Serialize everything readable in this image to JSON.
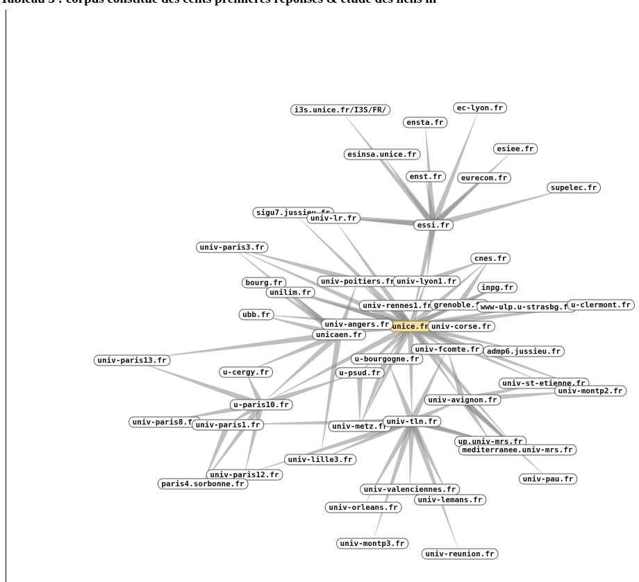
{
  "caption": "Tableau 3 : corpus constitué des cents premières réponses & étude des liens in",
  "colors": {
    "edge": "#8a8a8a",
    "hub_fill": "#f7e3a0",
    "node_fill": "#ffffff"
  },
  "nodes": [
    {
      "id": "unice",
      "label": "unice.fr",
      "hub": true
    },
    {
      "id": "i3s",
      "label": "i3s.unice.fr/I3S/FR/"
    },
    {
      "id": "eclyon",
      "label": "ec-lyon.fr"
    },
    {
      "id": "ensta",
      "label": "ensta.fr"
    },
    {
      "id": "esiee",
      "label": "esiee.fr"
    },
    {
      "id": "esinsa",
      "label": "esinsa.unice.fr"
    },
    {
      "id": "enst",
      "label": "enst.fr"
    },
    {
      "id": "eurecom",
      "label": "eurecom.fr"
    },
    {
      "id": "supelec",
      "label": "supelec.fr"
    },
    {
      "id": "sigu7",
      "label": "sigu7.jussieu.fr"
    },
    {
      "id": "univlr",
      "label": "univ-lr.fr"
    },
    {
      "id": "essi",
      "label": "essi.fr"
    },
    {
      "id": "paris3",
      "label": "univ-paris3.fr"
    },
    {
      "id": "cnes",
      "label": "cnes.fr"
    },
    {
      "id": "bourg",
      "label": "bourg.fr"
    },
    {
      "id": "poitiers",
      "label": "univ-poitiers.fr"
    },
    {
      "id": "lyon1",
      "label": "univ-lyon1.fr"
    },
    {
      "id": "inpg",
      "label": "inpg.fr"
    },
    {
      "id": "unilim",
      "label": "unilim.fr"
    },
    {
      "id": "rennes1",
      "label": "univ-rennes1.fr"
    },
    {
      "id": "grenoble",
      "label": "grenoble.fr"
    },
    {
      "id": "ulp",
      "label": "www-ulp.u-strasbg.fr"
    },
    {
      "id": "clermont",
      "label": "u-clermont.fr"
    },
    {
      "id": "ubb",
      "label": "ubb.fr"
    },
    {
      "id": "angers",
      "label": "univ-angers.fr"
    },
    {
      "id": "corse",
      "label": "univ-corse.fr"
    },
    {
      "id": "unicaen",
      "label": "unicaen.fr"
    },
    {
      "id": "fcomte",
      "label": "univ-fcomte.fr"
    },
    {
      "id": "admp6",
      "label": "admp6.jussieu.fr"
    },
    {
      "id": "ubourgogne",
      "label": "u-bourgogne.fr"
    },
    {
      "id": "paris13",
      "label": "univ-paris13.fr"
    },
    {
      "id": "cergy",
      "label": "u-cergy.fr"
    },
    {
      "id": "upsud",
      "label": "u-psud.fr"
    },
    {
      "id": "stetienne",
      "label": "univ-st-etienne.fr"
    },
    {
      "id": "montp2",
      "label": "univ-montp2.fr"
    },
    {
      "id": "avignon",
      "label": "univ-avignon.fr"
    },
    {
      "id": "paris10",
      "label": "u-paris10.fr"
    },
    {
      "id": "paris8",
      "label": "univ-paris8.fr"
    },
    {
      "id": "paris1",
      "label": "univ-paris1.fr"
    },
    {
      "id": "metz",
      "label": "univ-metz.fr"
    },
    {
      "id": "tln",
      "label": "univ-tln.fr"
    },
    {
      "id": "upmrs",
      "label": "up.univ-mrs.fr"
    },
    {
      "id": "mediterranee",
      "label": "mediterranee.univ-mrs.fr"
    },
    {
      "id": "lille3",
      "label": "univ-lille3.fr"
    },
    {
      "id": "paris12",
      "label": "univ-paris12.fr"
    },
    {
      "id": "paris4",
      "label": "paris4.sorbonne.fr"
    },
    {
      "id": "pau",
      "label": "univ-pau.fr"
    },
    {
      "id": "valenciennes",
      "label": "univ-valenciennes.fr"
    },
    {
      "id": "orleans",
      "label": "univ-orleans.fr"
    },
    {
      "id": "lemans",
      "label": "univ-lemans.fr"
    },
    {
      "id": "montp3",
      "label": "univ-montp3.fr"
    },
    {
      "id": "reunion",
      "label": "univ-reunion.fr"
    }
  ],
  "edges": [
    [
      "essi",
      "i3s"
    ],
    [
      "essi",
      "eclyon"
    ],
    [
      "essi",
      "ensta"
    ],
    [
      "essi",
      "esiee"
    ],
    [
      "essi",
      "esinsa"
    ],
    [
      "essi",
      "enst"
    ],
    [
      "essi",
      "eurecom"
    ],
    [
      "essi",
      "supelec"
    ],
    [
      "essi",
      "sigu7"
    ],
    [
      "essi",
      "univlr"
    ],
    [
      "essi",
      "unice"
    ],
    [
      "essi",
      "lyon1"
    ],
    [
      "unice",
      "cnes"
    ],
    [
      "unice",
      "bourg"
    ],
    [
      "unice",
      "poitiers"
    ],
    [
      "unice",
      "lyon1"
    ],
    [
      "unice",
      "inpg"
    ],
    [
      "unice",
      "unilim"
    ],
    [
      "unice",
      "rennes1"
    ],
    [
      "unice",
      "grenoble"
    ],
    [
      "unice",
      "ulp"
    ],
    [
      "unice",
      "clermont"
    ],
    [
      "unice",
      "ubb"
    ],
    [
      "unice",
      "angers"
    ],
    [
      "unice",
      "corse"
    ],
    [
      "unice",
      "unicaen"
    ],
    [
      "unice",
      "fcomte"
    ],
    [
      "unice",
      "admp6"
    ],
    [
      "unice",
      "ubourgogne"
    ],
    [
      "unice",
      "upsud"
    ],
    [
      "unice",
      "avignon"
    ],
    [
      "unice",
      "tln"
    ],
    [
      "unice",
      "paris10"
    ],
    [
      "unice",
      "metz"
    ],
    [
      "unice",
      "paris3"
    ],
    [
      "unice",
      "sigu7"
    ],
    [
      "unice",
      "univlr"
    ],
    [
      "unice",
      "stetienne"
    ],
    [
      "unice",
      "montp2"
    ],
    [
      "unice",
      "mediterranee"
    ],
    [
      "unicaen",
      "poitiers"
    ],
    [
      "unicaen",
      "unilim"
    ],
    [
      "unicaen",
      "bourg"
    ],
    [
      "unicaen",
      "paris10"
    ],
    [
      "unicaen",
      "cergy"
    ],
    [
      "unicaen",
      "paris3"
    ],
    [
      "unicaen",
      "ubb"
    ],
    [
      "unicaen",
      "lille3"
    ],
    [
      "unicaen",
      "paris13"
    ],
    [
      "paris10",
      "paris13"
    ],
    [
      "paris10",
      "paris8"
    ],
    [
      "paris10",
      "paris1"
    ],
    [
      "paris10",
      "paris12"
    ],
    [
      "paris10",
      "paris4"
    ],
    [
      "paris10",
      "cergy"
    ],
    [
      "paris10",
      "upsud"
    ],
    [
      "paris1",
      "paris4"
    ],
    [
      "tln",
      "valenciennes"
    ],
    [
      "tln",
      "orleans"
    ],
    [
      "tln",
      "lemans"
    ],
    [
      "tln",
      "montp3"
    ],
    [
      "tln",
      "reunion"
    ],
    [
      "tln",
      "avignon"
    ],
    [
      "tln",
      "metz"
    ],
    [
      "tln",
      "upmrs"
    ],
    [
      "tln",
      "mediterranee"
    ],
    [
      "tln",
      "lille3"
    ],
    [
      "tln",
      "fcomte"
    ],
    [
      "tln",
      "ubourgogne"
    ],
    [
      "tln",
      "paris1"
    ],
    [
      "tln",
      "paris12"
    ],
    [
      "avignon",
      "stetienne"
    ],
    [
      "avignon",
      "montp2"
    ],
    [
      "avignon",
      "upmrs"
    ],
    [
      "avignon",
      "mediterranee"
    ],
    [
      "avignon",
      "pau"
    ],
    [
      "avignon",
      "fcomte"
    ],
    [
      "ubourgogne",
      "metz"
    ],
    [
      "upsud",
      "metz"
    ],
    [
      "grenoble",
      "inpg"
    ],
    [
      "grenoble",
      "cnes"
    ],
    [
      "lyon1",
      "cnes"
    ],
    [
      "poitiers",
      "paris3"
    ]
  ]
}
